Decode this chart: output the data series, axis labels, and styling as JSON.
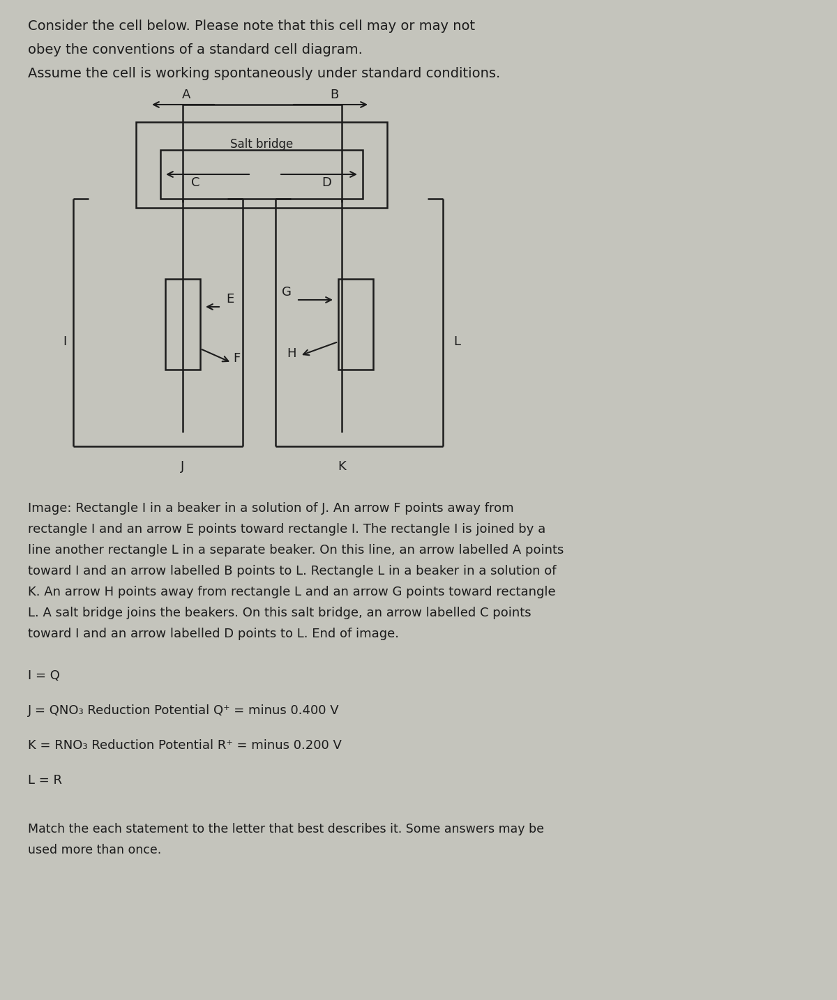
{
  "bg_color": "#c4c4bc",
  "title_lines": [
    "Consider the cell below. Please note that this cell may or may not",
    "obey the conventions of a standard cell diagram.",
    "Assume the cell is working spontaneously under standard conditions."
  ],
  "title_fontsize": 14,
  "description_text": "Image: Rectangle I in a beaker in a solution of J. An arrow F points away from\nrectangle I and an arrow E points toward rectangle I. The rectangle I is joined by a\nline another rectangle L in a separate beaker. On this line, an arrow labelled A points\ntoward I and an arrow labelled B points to L. Rectangle L in a beaker in a solution of\nK. An arrow H points away from rectangle L and an arrow G points toward rectangle\nL. A salt bridge joins the beakers. On this salt bridge, an arrow labelled C points\ntoward I and an arrow labelled D points to L. End of image.",
  "info_I": "I = Q",
  "info_J": "J = QNO₃ Reduction Potential Q⁺ = minus 0.400 V",
  "info_K": "K = RNO₃ Reduction Potential R⁺ = minus 0.200 V",
  "info_L": "L = R",
  "footer_text": "Match the each statement to the letter that best describes it. Some answers may be\nused more than once.",
  "text_color": "#1c1c1c",
  "diagram_line_color": "#1c1c1c",
  "fontsize_body": 13,
  "fontsize_label": 13
}
